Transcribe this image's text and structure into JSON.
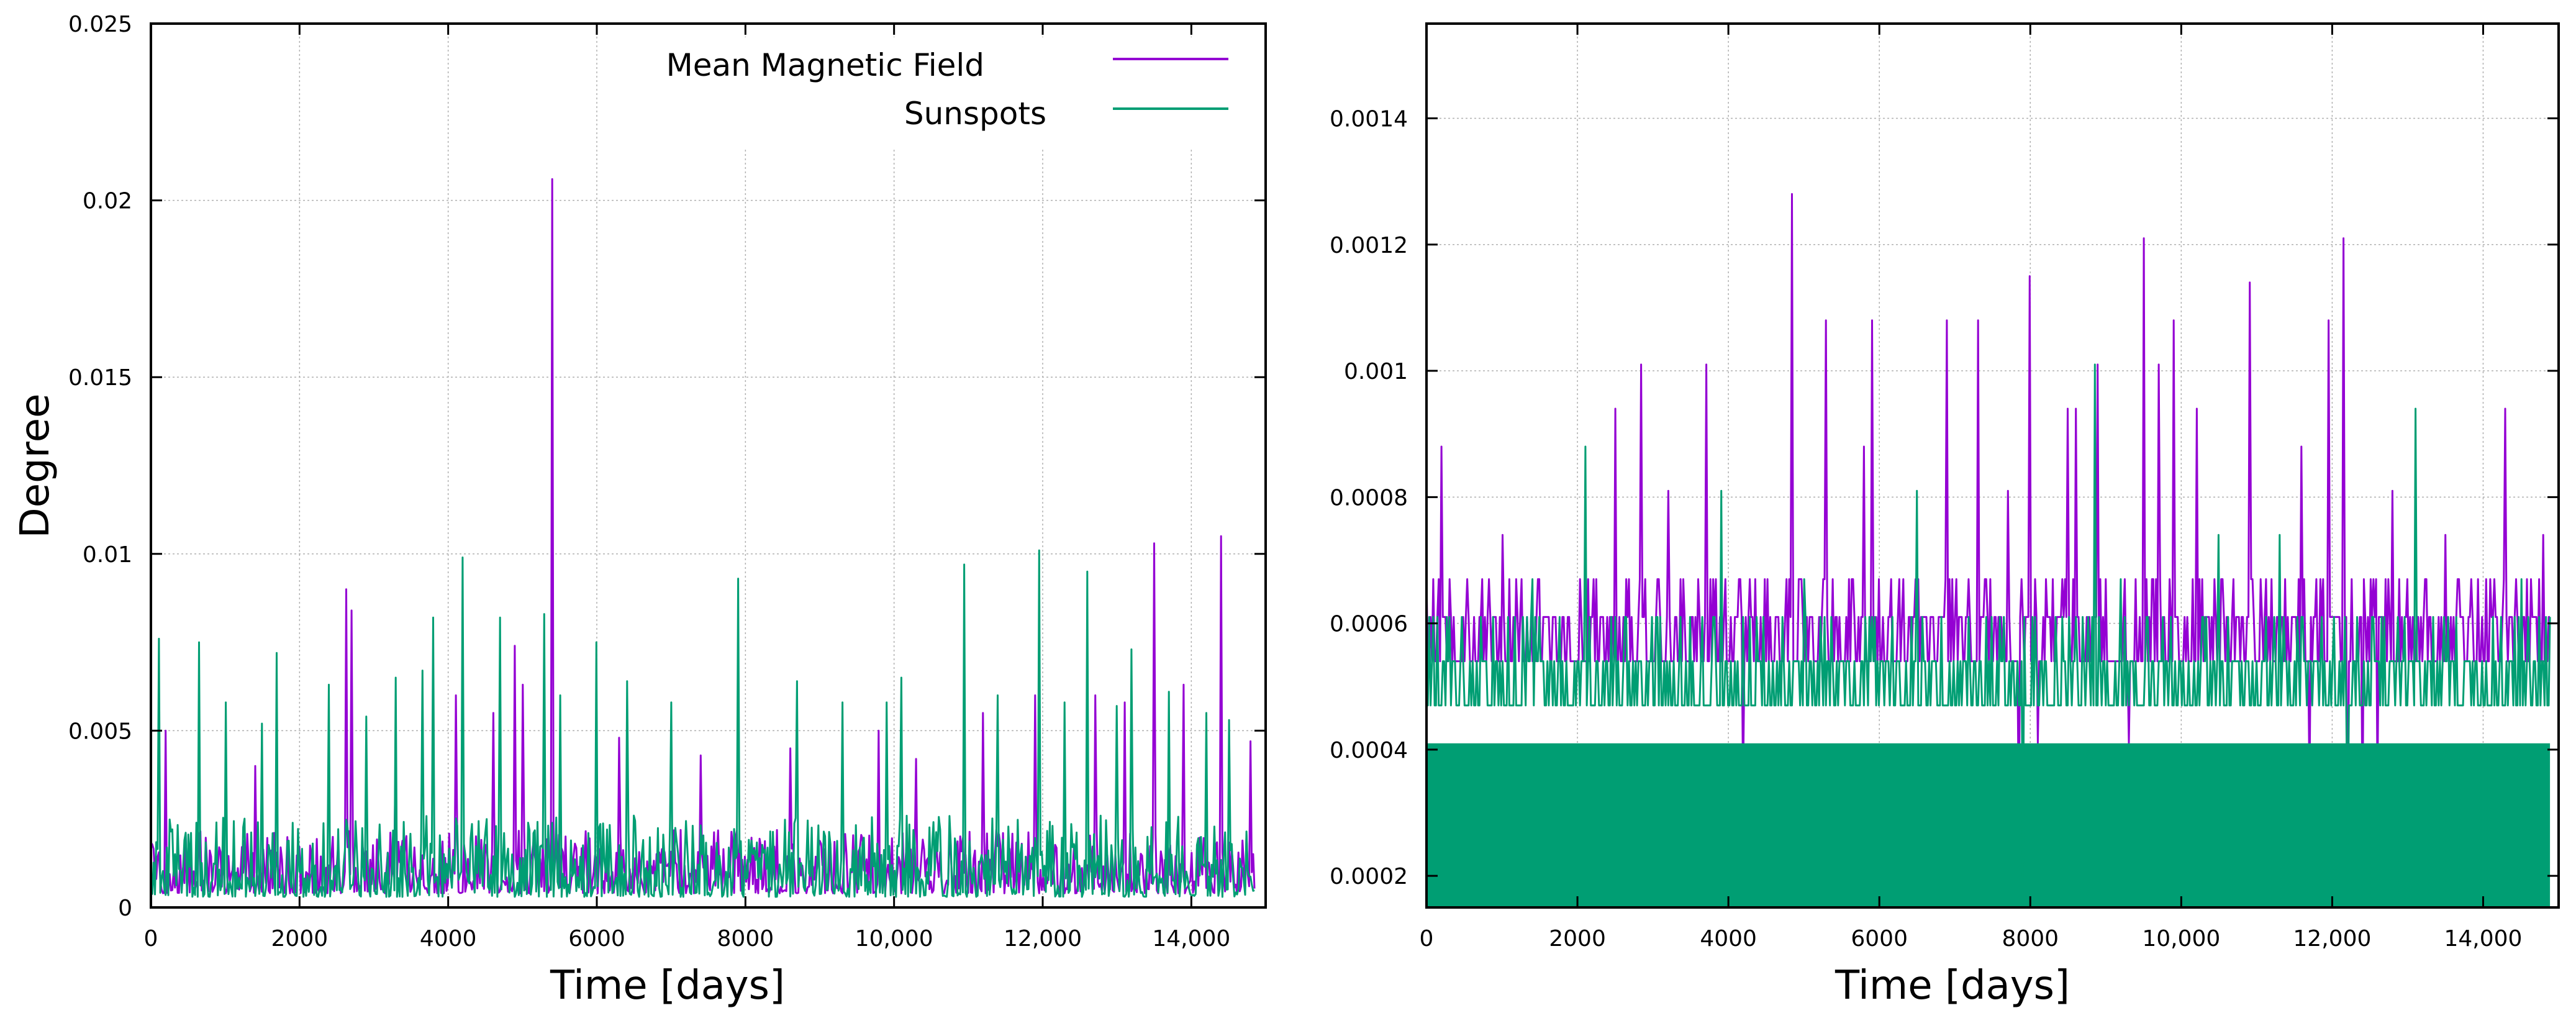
{
  "colors": {
    "magnetic": "#9400d3",
    "sunspots": "#009e73",
    "grid": "#b0b0b0",
    "axis": "#000000"
  },
  "chart_data": [
    {
      "type": "line",
      "panel": "left",
      "xlabel": "Time [days]",
      "ylabel": "Degree",
      "xlim": [
        0,
        15000
      ],
      "ylim": [
        0,
        0.025
      ],
      "grid": true,
      "legend": "top-right",
      "xticks": [
        0,
        2000,
        4000,
        6000,
        8000,
        10000,
        12000,
        14000
      ],
      "xtick_labels": [
        "0",
        "2000",
        "4000",
        "6000",
        "8000",
        "10,000",
        "12,000",
        "14,000"
      ],
      "yticks": [
        0,
        0.005,
        0.01,
        0.015,
        0.02,
        0.025
      ],
      "ytick_labels": [
        "0",
        "0.005",
        "0.01",
        "0.015",
        "0.02",
        "0.025"
      ],
      "series": [
        {
          "name": "Mean Magnetic Field",
          "color": "#9400d3",
          "baseline": 0.0004,
          "band_max": 0.0022,
          "x_end": 14850,
          "peaks": [
            [
              5400,
              0.0206
            ],
            [
              14400,
              0.0105
            ],
            [
              13500,
              0.0103
            ],
            [
              2620,
              0.009
            ],
            [
              4900,
              0.0074
            ],
            [
              5000,
              0.0063
            ],
            [
              4100,
              0.006
            ],
            [
              2700,
              0.0084
            ],
            [
              11900,
              0.006
            ],
            [
              13900,
              0.0063
            ],
            [
              13100,
              0.0058
            ],
            [
              12700,
              0.006
            ],
            [
              11200,
              0.0055
            ],
            [
              9800,
              0.005
            ],
            [
              200,
              0.005
            ],
            [
              1400,
              0.004
            ],
            [
              3300,
              0.0045
            ],
            [
              6300,
              0.0048
            ],
            [
              8600,
              0.0045
            ],
            [
              10300,
              0.0042
            ],
            [
              14800,
              0.0047
            ],
            [
              7400,
              0.0043
            ],
            [
              4600,
              0.0055
            ]
          ]
        },
        {
          "name": "Sunspots",
          "color": "#009e73",
          "baseline": 0.0003,
          "band_max": 0.0026,
          "x_end": 14850,
          "peaks": [
            [
              4200,
              0.0099
            ],
            [
              11950,
              0.0101
            ],
            [
              7900,
              0.0093
            ],
            [
              10950,
              0.0097
            ],
            [
              5300,
              0.0083
            ],
            [
              3800,
              0.0082
            ],
            [
              4700,
              0.0082
            ],
            [
              6000,
              0.0075
            ],
            [
              1700,
              0.0072
            ],
            [
              100,
              0.0076
            ],
            [
              650,
              0.0075
            ],
            [
              3650,
              0.0067
            ],
            [
              3300,
              0.0065
            ],
            [
              12600,
              0.0095
            ],
            [
              13200,
              0.0073
            ],
            [
              2400,
              0.0063
            ],
            [
              10100,
              0.0065
            ],
            [
              9900,
              0.0058
            ],
            [
              7000,
              0.0058
            ],
            [
              8700,
              0.0064
            ],
            [
              1000,
              0.0058
            ],
            [
              13700,
              0.0061
            ],
            [
              14500,
              0.0053
            ],
            [
              6400,
              0.0064
            ],
            [
              9300,
              0.0058
            ],
            [
              2900,
              0.0054
            ],
            [
              5500,
              0.006
            ],
            [
              1500,
              0.0052
            ],
            [
              11400,
              0.006
            ],
            [
              12300,
              0.0058
            ],
            [
              13000,
              0.0057
            ],
            [
              14200,
              0.0055
            ]
          ]
        }
      ]
    },
    {
      "type": "line",
      "panel": "right",
      "xlabel": "Time [days]",
      "ylabel": "",
      "xlim": [
        0,
        15000
      ],
      "ylim": [
        0.00015,
        0.00155
      ],
      "grid": true,
      "xticks": [
        0,
        2000,
        4000,
        6000,
        8000,
        10000,
        12000,
        14000
      ],
      "xtick_labels": [
        "0",
        "2000",
        "4000",
        "6000",
        "8000",
        "10,000",
        "12,000",
        "14,000"
      ],
      "yticks": [
        0.0002,
        0.0004,
        0.0006,
        0.0008,
        0.001,
        0.0012,
        0.0014
      ],
      "ytick_labels": [
        "0.0002",
        "0.0004",
        "0.0006",
        "0.0008",
        "0.001",
        "0.0012",
        "0.0014"
      ],
      "series": [
        {
          "name": "Mean Magnetic Field",
          "color": "#9400d3",
          "floor": 0.00047,
          "levels": [
            0.00054,
            0.00061,
            0.00067
          ],
          "x_end": 14900,
          "peaks": [
            [
              4850,
              0.00128
            ],
            [
              12150,
              0.00121
            ],
            [
              9500,
              0.00121
            ],
            [
              8000,
              0.00115
            ],
            [
              10900,
              0.00114
            ],
            [
              7850,
              0.00108
            ],
            [
              5300,
              0.00108
            ],
            [
              5900,
              0.00108
            ],
            [
              6900,
              0.00108
            ],
            [
              7300,
              0.00108
            ],
            [
              9900,
              0.00108
            ],
            [
              11950,
              0.00108
            ],
            [
              2850,
              0.00101
            ],
            [
              3700,
              0.00101
            ],
            [
              4200,
              0.00101
            ],
            [
              8900,
              0.00101
            ],
            [
              9700,
              0.00101
            ],
            [
              10200,
              0.00094
            ],
            [
              2500,
              0.00094
            ],
            [
              8500,
              0.00094
            ],
            [
              8600,
              0.00094
            ],
            [
              14300,
              0.00094
            ],
            [
              200,
              0.00088
            ],
            [
              5800,
              0.00088
            ],
            [
              11600,
              0.00088
            ],
            [
              12800,
              0.00081
            ],
            [
              3200,
              0.00081
            ],
            [
              7700,
              0.00081
            ],
            [
              14800,
              0.00074
            ],
            [
              13500,
              0.00074
            ],
            [
              1000,
              0.00074
            ]
          ],
          "dips": [
            [
              7850,
              0.00028
            ],
            [
              12200,
              0.00022
            ],
            [
              12400,
              0.00028
            ],
            [
              4200,
              0.00034
            ],
            [
              11700,
              0.00034
            ],
            [
              12600,
              0.00034
            ],
            [
              8100,
              0.00041
            ],
            [
              9300,
              0.00041
            ]
          ]
        },
        {
          "name": "Sunspots",
          "color": "#009e73",
          "floor": 0.00041,
          "levels": [
            0.00047,
            0.00054,
            0.00061
          ],
          "x_end": 14900,
          "peaks": [
            [
              2100,
              0.00088
            ],
            [
              8850,
              0.00101
            ],
            [
              13100,
              0.00094
            ],
            [
              3900,
              0.00081
            ],
            [
              6500,
              0.00081
            ],
            [
              10500,
              0.00074
            ],
            [
              1400,
              0.00067
            ],
            [
              11300,
              0.00074
            ],
            [
              14500,
              0.00067
            ],
            [
              9200,
              0.00067
            ],
            [
              5000,
              0.00067
            ]
          ],
          "dips": [
            [
              7900,
              0.0002
            ],
            [
              12200,
              0.00025
            ]
          ]
        }
      ]
    }
  ]
}
